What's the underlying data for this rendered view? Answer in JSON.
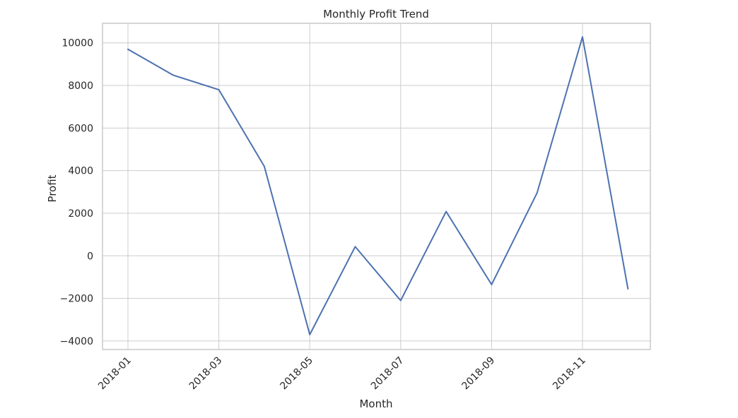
{
  "chart_data": {
    "type": "line",
    "title": "Monthly Profit Trend",
    "xlabel": "Month",
    "ylabel": "Profit",
    "x": [
      "2018-01",
      "2018-02",
      "2018-03",
      "2018-04",
      "2018-05",
      "2018-06",
      "2018-07",
      "2018-08",
      "2018-09",
      "2018-10",
      "2018-11",
      "2018-12"
    ],
    "x_ticks": [
      "2018-01",
      "2018-03",
      "2018-05",
      "2018-07",
      "2018-09",
      "2018-11"
    ],
    "series": [
      {
        "values": [
          9700,
          8480,
          7800,
          4200,
          -3700,
          430,
          -2100,
          2080,
          -1350,
          2950,
          10280,
          -1550
        ],
        "color": "#4c72b0"
      }
    ],
    "y_ticks": [
      -4000,
      -2000,
      0,
      2000,
      4000,
      6000,
      8000,
      10000
    ],
    "ylim": [
      -4400,
      10920
    ],
    "grid": true,
    "colors": {
      "grid": "#cccccc",
      "text": "#262626",
      "background": "#ffffff"
    }
  }
}
